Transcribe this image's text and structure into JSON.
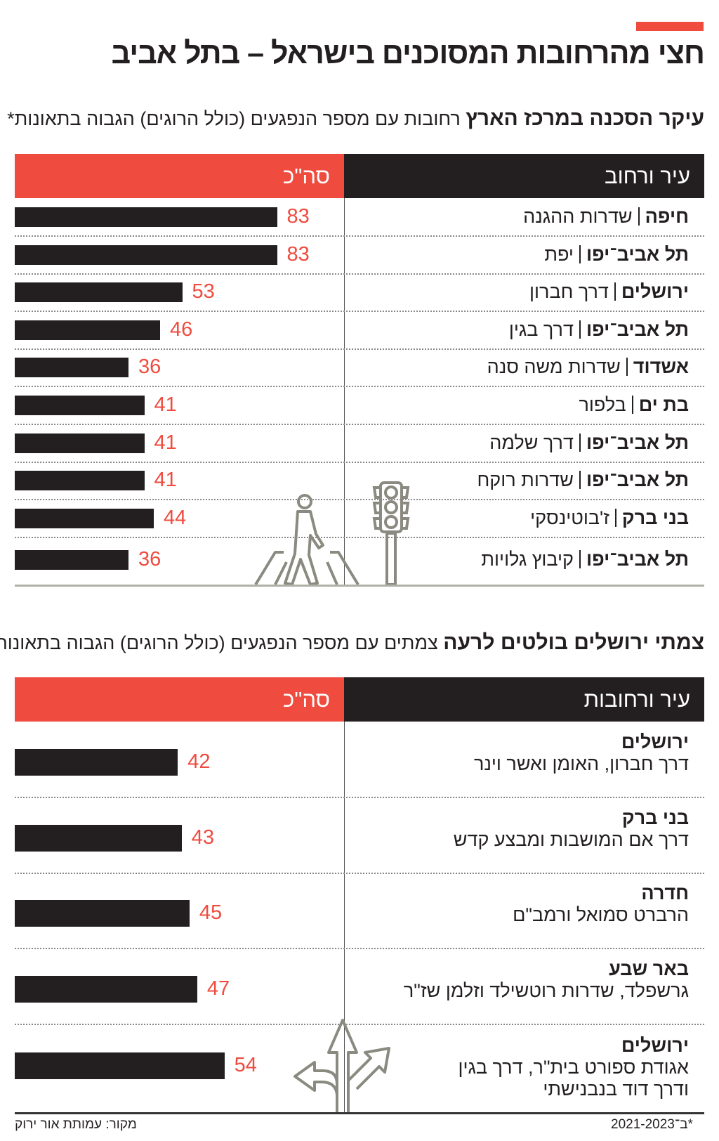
{
  "title": "חצי מהרחובות המסוכנים בישראל – בתל אביב",
  "colors": {
    "accent": "#ef4b3f",
    "bar": "#231f20"
  },
  "chart_data": [
    {
      "type": "bar",
      "orientation": "horizontal",
      "title_bold": "עיקר הסכנה במרכז הארץ",
      "title": "רחובות עם מספר הנפגעים (כולל הרוגים) הגבוה בתאונות*",
      "header_label": "עיר ורחוב",
      "header_value": "סה\"כ",
      "rows": [
        {
          "city": "חיפה",
          "street": "שדרות ההגנה",
          "value": 83
        },
        {
          "city": "תל אביב־יפו",
          "street": "יפת",
          "value": 83
        },
        {
          "city": "ירושלים",
          "street": "דרך חברון",
          "value": 53
        },
        {
          "city": "תל אביב־יפו",
          "street": "דרך בגין",
          "value": 46
        },
        {
          "city": "אשדוד",
          "street": "שדרות משה סנה",
          "value": 36
        },
        {
          "city": "בת ים",
          "street": "בלפור",
          "value": 41
        },
        {
          "city": "תל אביב־יפו",
          "street": "דרך שלמה",
          "value": 41
        },
        {
          "city": "תל אביב־יפו",
          "street": "שדרות רוקח",
          "value": 41
        },
        {
          "city": "בני ברק",
          "street": "ז'בוטינסקי",
          "value": 44
        },
        {
          "city": "תל אביב־יפו",
          "street": "קיבוץ גלויות",
          "value": 36
        }
      ],
      "icons": [
        "pedestrian-crossing-icon",
        "traffic-light-icon"
      ]
    },
    {
      "type": "bar",
      "orientation": "horizontal",
      "title_bold": "צמתי ירושלים בולטים לרעה",
      "title": "צמתים עם מספר הנפגעים (כולל הרוגים) הגבוה בתאונות*",
      "header_label": "עיר ורחובות",
      "header_value": "סה\"כ",
      "rows": [
        {
          "city": "ירושלים",
          "street": "דרך חברון, האומן ואשר וינר",
          "value": 42
        },
        {
          "city": "בני ברק",
          "street": "דרך אם המושבות ומבצע קדש",
          "value": 43
        },
        {
          "city": "חדרה",
          "street": "הרברט סמואל ורמב\"ם",
          "value": 45
        },
        {
          "city": "באר שבע",
          "street": "גרשפלד, שדרות רוטשילד וזלמן שז\"ר",
          "value": 47
        },
        {
          "city": "ירושלים",
          "street": "אגודת ספורט בית\"ר, דרך בגין ודרך דוד בנבנישתי",
          "value": 54
        }
      ],
      "icons": [
        "road-junction-arrows-icon"
      ]
    }
  ],
  "footer": {
    "note": "*ב־2021-2023",
    "source": "מקור: עמותת אור ירוק"
  }
}
